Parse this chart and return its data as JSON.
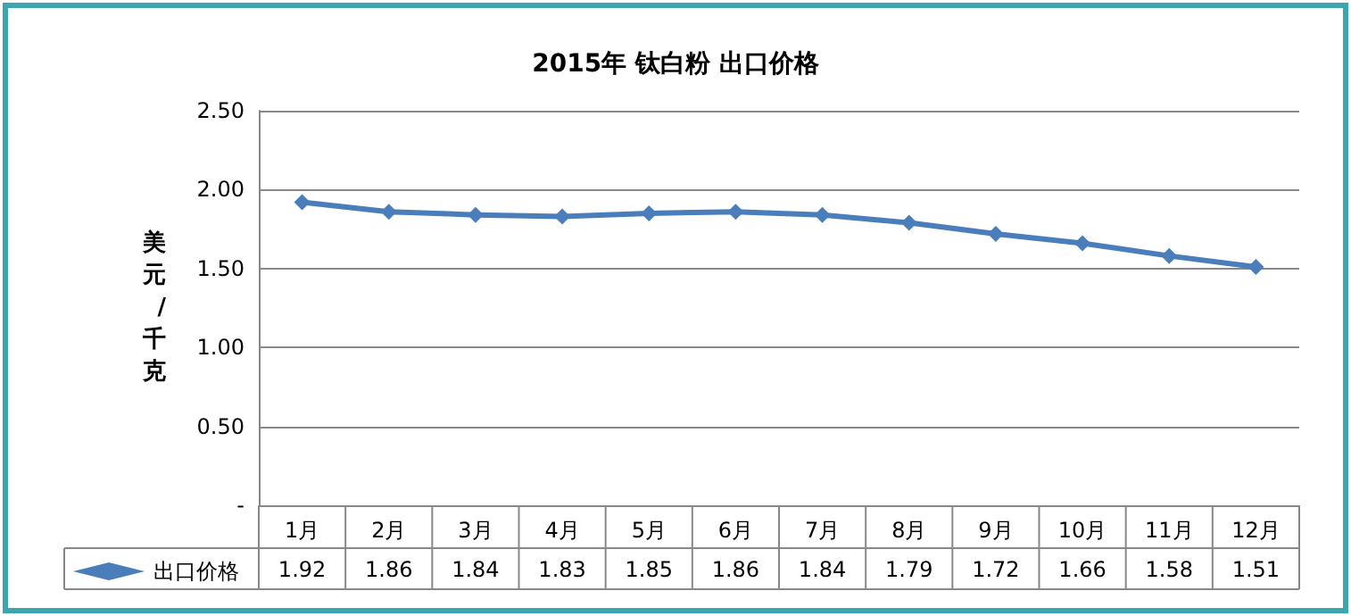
{
  "chart_data": {
    "type": "line",
    "title": "2015年 钛白粉 出口价格",
    "ylabel": "美元/千克",
    "categories": [
      "1月",
      "2月",
      "3月",
      "4月",
      "5月",
      "6月",
      "7月",
      "8月",
      "9月",
      "10月",
      "11月",
      "12月"
    ],
    "series": [
      {
        "name": "出口价格",
        "color": "#4a7ebb",
        "values": [
          1.92,
          1.86,
          1.84,
          1.83,
          1.85,
          1.86,
          1.84,
          1.79,
          1.72,
          1.66,
          1.58,
          1.51
        ]
      }
    ],
    "ylim": [
      0,
      2.5
    ],
    "yticks": [
      {
        "value": 0,
        "label": "-"
      },
      {
        "value": 0.5,
        "label": "0.50"
      },
      {
        "value": 1,
        "label": "1.00"
      },
      {
        "value": 1.5,
        "label": "1.50"
      },
      {
        "value": 2,
        "label": "2.00"
      },
      {
        "value": 2.5,
        "label": "2.50"
      }
    ],
    "grid": "y",
    "marker": "diamond",
    "legend": "bottom left",
    "data_labels": true
  }
}
